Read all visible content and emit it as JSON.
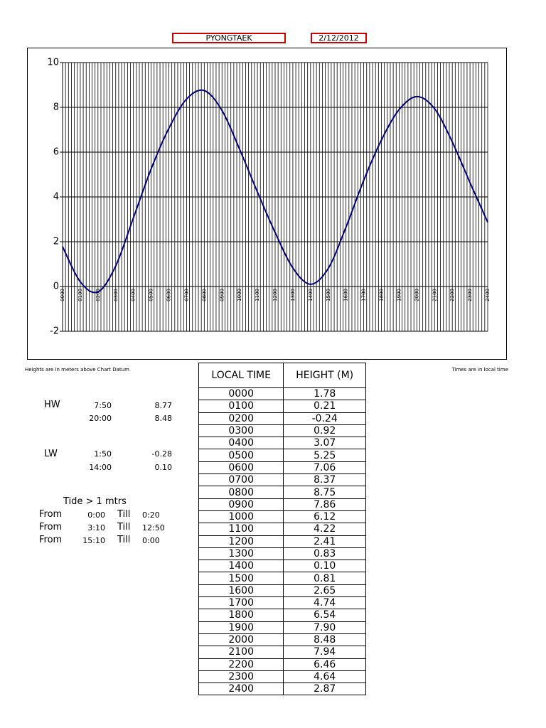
{
  "header": {
    "station": "PYONGTAEK",
    "date": "2/12/2012"
  },
  "chart_data": {
    "type": "line",
    "color": "#000080",
    "categories": [
      "0000",
      "0100",
      "0200",
      "0300",
      "0400",
      "0500",
      "0600",
      "0700",
      "0800",
      "0900",
      "1000",
      "1100",
      "1200",
      "1300",
      "1400",
      "1500",
      "1600",
      "1700",
      "1800",
      "1900",
      "2000",
      "2100",
      "2200",
      "2300",
      "2400"
    ],
    "values": [
      1.78,
      0.21,
      -0.24,
      0.92,
      3.07,
      5.25,
      7.06,
      8.37,
      8.75,
      7.86,
      6.12,
      4.22,
      2.41,
      0.83,
      0.1,
      0.81,
      2.65,
      4.74,
      6.54,
      7.9,
      8.48,
      7.94,
      6.46,
      4.64,
      2.87
    ],
    "value_labels": [
      "1.78",
      "0.21",
      "-0.24",
      "0.92",
      "3.07",
      "5.25",
      "7.06",
      "8.37",
      "8.75",
      "7.86",
      "6.12",
      "4.22",
      "2.41",
      "0.83",
      "0.10",
      "0.81",
      "2.65",
      "4.74",
      "6.54",
      "7.90",
      "8.48",
      "7.94",
      "6.46",
      "4.64",
      "2.87"
    ],
    "ylim": [
      -2,
      10
    ],
    "yticks": [
      -2,
      0,
      2,
      4,
      6,
      8,
      10
    ],
    "grid": true
  },
  "notes": {
    "heights": "Heights are in meters above Chart Datum",
    "times": "Times are in local time"
  },
  "table": {
    "columns": [
      "LOCAL TIME",
      "HEIGHT (M)"
    ]
  },
  "high_water": {
    "label": "HW",
    "rows": [
      [
        "7:50",
        "8.77"
      ],
      [
        "20:00",
        "8.48"
      ]
    ]
  },
  "low_water": {
    "label": "LW",
    "rows": [
      [
        "1:50",
        "-0.28"
      ],
      [
        "14:00",
        "0.10"
      ]
    ]
  },
  "tide_window": {
    "title": "Tide > 1 mtrs",
    "rows": [
      {
        "from_label": "From",
        "from": "0:00",
        "till_label": "Till",
        "till": "0:20"
      },
      {
        "from_label": "From",
        "from": "3:10",
        "till_label": "Till",
        "till": "12:50"
      },
      {
        "from_label": "From",
        "from": "15:10",
        "till_label": "Till",
        "till": "0:00"
      }
    ]
  }
}
